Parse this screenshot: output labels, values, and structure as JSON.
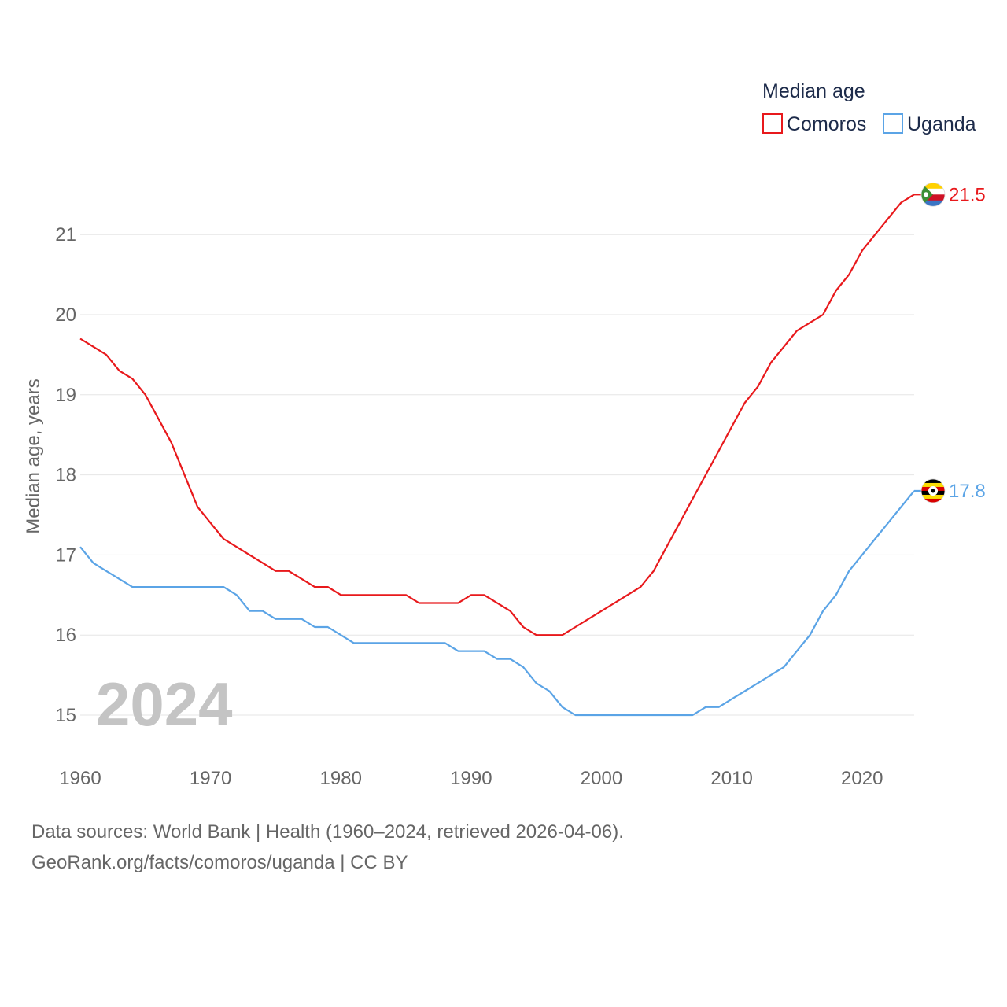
{
  "chart_data": {
    "type": "line",
    "title": "",
    "xlabel": "",
    "ylabel": "Median age, years",
    "legend_title": "Median age",
    "legend_position": "top-right",
    "current_year": "2024",
    "xlim": [
      1960,
      2024
    ],
    "ylim": [
      14.5,
      21.6
    ],
    "x_ticks": [
      1960,
      1970,
      1980,
      1990,
      2000,
      2010,
      2020
    ],
    "y_ticks": [
      15,
      16,
      17,
      18,
      19,
      20,
      21
    ],
    "x": [
      1960,
      1961,
      1962,
      1963,
      1964,
      1965,
      1966,
      1967,
      1968,
      1969,
      1970,
      1971,
      1972,
      1973,
      1974,
      1975,
      1976,
      1977,
      1978,
      1979,
      1980,
      1981,
      1982,
      1983,
      1984,
      1985,
      1986,
      1987,
      1988,
      1989,
      1990,
      1991,
      1992,
      1993,
      1994,
      1995,
      1996,
      1997,
      1998,
      1999,
      2000,
      2001,
      2002,
      2003,
      2004,
      2005,
      2006,
      2007,
      2008,
      2009,
      2010,
      2011,
      2012,
      2013,
      2014,
      2015,
      2016,
      2017,
      2018,
      2019,
      2020,
      2021,
      2022,
      2023,
      2024
    ],
    "series": [
      {
        "name": "Comoros",
        "color": "#e8191c",
        "end_label": "21.5",
        "flag": "comoros-flag-icon",
        "values": [
          19.7,
          19.6,
          19.5,
          19.3,
          19.2,
          19.0,
          18.7,
          18.4,
          18.0,
          17.6,
          17.4,
          17.2,
          17.1,
          17.0,
          16.9,
          16.8,
          16.8,
          16.7,
          16.6,
          16.6,
          16.5,
          16.5,
          16.5,
          16.5,
          16.5,
          16.5,
          16.4,
          16.4,
          16.4,
          16.4,
          16.5,
          16.5,
          16.4,
          16.3,
          16.1,
          16.0,
          16.0,
          16.0,
          16.1,
          16.2,
          16.3,
          16.4,
          16.5,
          16.6,
          16.8,
          17.1,
          17.4,
          17.7,
          18.0,
          18.3,
          18.6,
          18.9,
          19.1,
          19.4,
          19.6,
          19.8,
          19.9,
          20.0,
          20.3,
          20.5,
          20.8,
          21.0,
          21.2,
          21.4,
          21.5
        ]
      },
      {
        "name": "Uganda",
        "color": "#5ba4e6",
        "end_label": "17.8",
        "flag": "uganda-flag-icon",
        "values": [
          17.1,
          16.9,
          16.8,
          16.7,
          16.6,
          16.6,
          16.6,
          16.6,
          16.6,
          16.6,
          16.6,
          16.6,
          16.5,
          16.3,
          16.3,
          16.2,
          16.2,
          16.2,
          16.1,
          16.1,
          16.0,
          15.9,
          15.9,
          15.9,
          15.9,
          15.9,
          15.9,
          15.9,
          15.9,
          15.8,
          15.8,
          15.8,
          15.7,
          15.7,
          15.6,
          15.4,
          15.3,
          15.1,
          15.0,
          15.0,
          15.0,
          15.0,
          15.0,
          15.0,
          15.0,
          15.0,
          15.0,
          15.0,
          15.1,
          15.1,
          15.2,
          15.3,
          15.4,
          15.5,
          15.6,
          15.8,
          16.0,
          16.3,
          16.5,
          16.8,
          17.0,
          17.2,
          17.4,
          17.6,
          17.8
        ]
      }
    ]
  },
  "footer": {
    "line1": "Data sources: World Bank | Health (1960–2024, retrieved 2026-04-06).",
    "line2": "GeoRank.org/facts/comoros/uganda | CC BY"
  }
}
